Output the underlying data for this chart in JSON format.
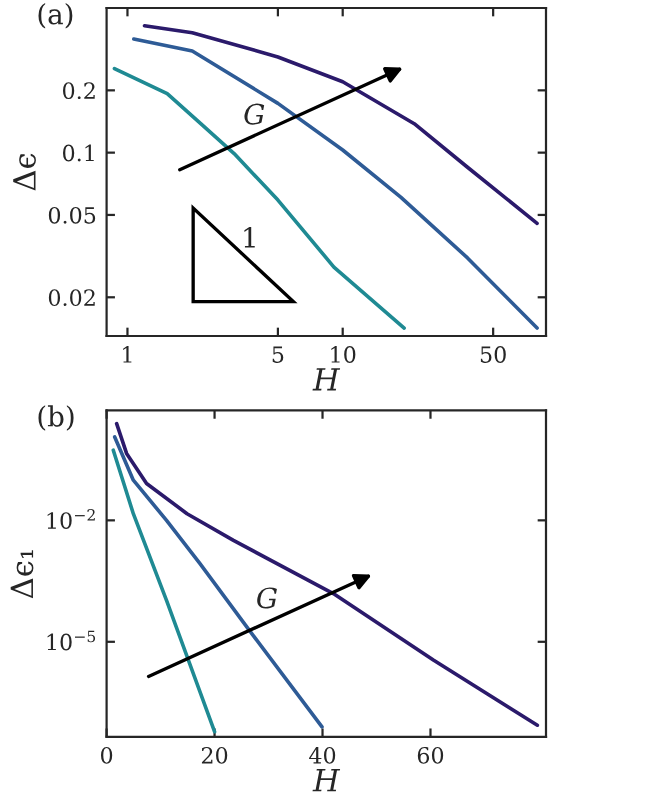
{
  "chart_data": [
    {
      "type": "line",
      "title": "(a)",
      "xlabel": "H",
      "ylabel": "Δϵ",
      "log": "xy",
      "grid": false,
      "legend": false,
      "xlim": [
        0.8,
        88
      ],
      "ylim": [
        0.013,
        0.5
      ],
      "xticks": [
        1,
        5,
        10,
        50
      ],
      "yticks": [
        0.02,
        0.05,
        0.1,
        0.2
      ],
      "annotations": [
        "G",
        "1"
      ],
      "series": [
        {
          "color": "#2b1a6b",
          "x": [
            1.2,
            2,
            5,
            10,
            21.5,
            38,
            80
          ],
          "values": [
            0.41,
            0.38,
            0.29,
            0.22,
            0.138,
            0.085,
            0.0455
          ]
        },
        {
          "color": "#2e5b96",
          "x": [
            1.07,
            2,
            5,
            10,
            18.6,
            38,
            80
          ],
          "values": [
            0.354,
            0.31,
            0.173,
            0.103,
            0.061,
            0.031,
            0.0142
          ]
        },
        {
          "color": "#1f8a93",
          "x": [
            0.87,
            1.53,
            2.19,
            3.13,
            5,
            9.1,
            19.3
          ],
          "values": [
            0.255,
            0.193,
            0.138,
            0.099,
            0.059,
            0.028,
            0.0142
          ]
        }
      ]
    },
    {
      "type": "line",
      "title": "(b)",
      "xlabel": "H",
      "ylabel": "Δϵ₁",
      "log": "y",
      "grid": false,
      "legend": false,
      "xlim": [
        0,
        81.4
      ],
      "ylim": [
        4.5e-08,
        5.2
      ],
      "xticks": [
        0,
        20,
        40,
        60
      ],
      "yticks": [
        {
          "value": 0.01,
          "label": "10$^{−2}$"
        },
        {
          "value": 1e-05,
          "label": "10$^{−5}$"
        }
      ],
      "annotations": [
        "G"
      ],
      "series": [
        {
          "color": "#2b1a6b",
          "x": [
            1.86,
            3.7,
            7.4,
            14.9,
            23.5,
            42,
            60.6,
            79.8
          ],
          "values": [
            2.45,
            0.45,
            0.081,
            0.0146,
            0.0032,
            0.000155,
            3.5e-06,
            8.7e-08
          ]
        },
        {
          "color": "#2e5b96",
          "x": [
            1.5,
            4.95,
            11.1,
            17.3,
            26,
            39.9
          ],
          "values": [
            1.15,
            0.098,
            0.01,
            0.00085,
            2.3e-05,
            7.9e-08
          ]
        },
        {
          "color": "#1f8a93",
          "x": [
            1.24,
            4.95,
            11.1,
            20
          ],
          "values": [
            0.54,
            0.0146,
            0.000105,
            6e-08
          ]
        }
      ]
    }
  ]
}
